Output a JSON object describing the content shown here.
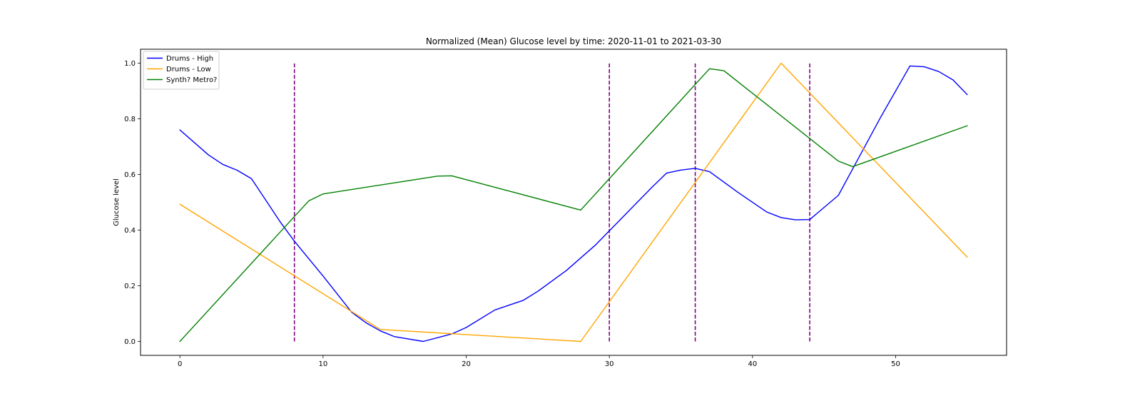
{
  "chart_data": {
    "type": "line",
    "title": "Normalized (Mean) Glucose level by time: 2020-11-01 to 2021-03-30",
    "xlabel": "",
    "ylabel": "Glucose level",
    "xlim": [
      -2.75,
      57.75
    ],
    "ylim": [
      -0.05,
      1.05
    ],
    "xticks": [
      0,
      10,
      20,
      30,
      40,
      50
    ],
    "yticks": [
      0.0,
      0.2,
      0.4,
      0.6,
      0.8,
      1.0
    ],
    "xtick_labels": [
      "0",
      "10",
      "20",
      "30",
      "40",
      "50"
    ],
    "ytick_labels": [
      "0.0",
      "0.2",
      "0.4",
      "0.6",
      "0.8",
      "1.0"
    ],
    "grid": false,
    "legend_position": "top-left",
    "series": [
      {
        "name": "Drums - High",
        "color": "#0000ff",
        "x": [
          0,
          2,
          3,
          4,
          5,
          7,
          8,
          10,
          12,
          13,
          14,
          15,
          17,
          19,
          20,
          22,
          24,
          25,
          27,
          29,
          31,
          33,
          34,
          35,
          36,
          37,
          39,
          41,
          42,
          43,
          44,
          46,
          47,
          49,
          51,
          52,
          53,
          54,
          55
        ],
        "y": [
          0.76,
          0.67,
          0.636,
          0.615,
          0.585,
          0.43,
          0.36,
          0.235,
          0.105,
          0.067,
          0.038,
          0.017,
          0.0,
          0.027,
          0.05,
          0.113,
          0.148,
          0.18,
          0.255,
          0.345,
          0.45,
          0.555,
          0.605,
          0.616,
          0.622,
          0.61,
          0.535,
          0.465,
          0.445,
          0.437,
          0.438,
          0.525,
          0.62,
          0.81,
          0.99,
          0.987,
          0.97,
          0.94,
          0.887
        ]
      },
      {
        "name": "Drums - Low",
        "color": "#ffa500",
        "x": [
          0,
          14,
          28,
          42,
          55
        ],
        "y": [
          0.493,
          0.043,
          0.0,
          1.0,
          0.303
        ]
      },
      {
        "name": "Synth? Metro?",
        "color": "#008000",
        "x": [
          0,
          9,
          10,
          18,
          19,
          28,
          37,
          38,
          46,
          47,
          55
        ],
        "y": [
          0.0,
          0.505,
          0.53,
          0.594,
          0.595,
          0.472,
          0.98,
          0.973,
          0.648,
          0.628,
          0.775
        ]
      }
    ],
    "vlines": {
      "color": "#800080",
      "style": "dashed",
      "x": [
        8,
        30,
        36,
        44
      ],
      "ymin": 0.0,
      "ymax": 1.0
    }
  }
}
